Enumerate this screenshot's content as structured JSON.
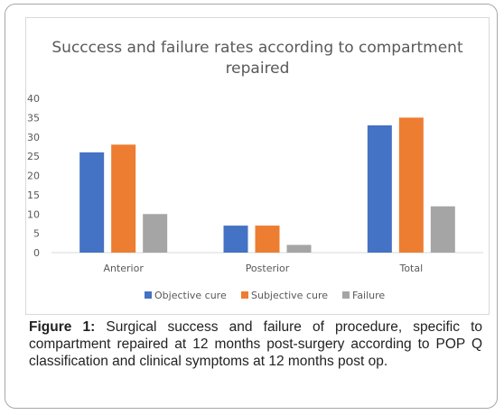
{
  "chart_data": {
    "type": "bar",
    "title": "Succcess and failure rates according to compartment repaired",
    "categories": [
      "Anterior",
      "Posterior",
      "Total"
    ],
    "series": [
      {
        "name": "Objective cure",
        "color": "#4472c4",
        "values": [
          26,
          7,
          33
        ]
      },
      {
        "name": "Subjective cure",
        "color": "#ed7d31",
        "values": [
          28,
          7,
          35
        ]
      },
      {
        "name": "Failure",
        "color": "#a5a5a5",
        "values": [
          10,
          2,
          12
        ]
      }
    ],
    "ylim": [
      0,
      40
    ],
    "yticks": [
      "0",
      "5",
      "10",
      "15",
      "20",
      "25",
      "30",
      "35",
      "40"
    ],
    "grid": false,
    "legend_position": "bottom"
  },
  "caption": {
    "label": "Figure 1:",
    "text": " Surgical success and failure of procedure, specific to compartment repaired at 12 months post-surgery according to POP Q classification and clinical symptoms at 12 months post op."
  }
}
